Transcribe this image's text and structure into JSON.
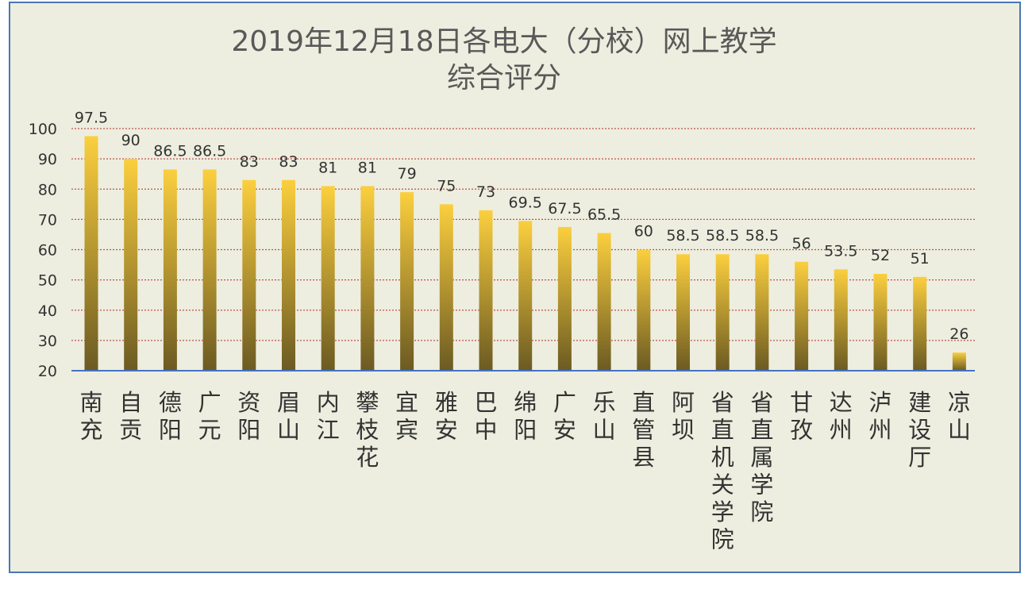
{
  "chart_data": {
    "type": "bar",
    "title": "2019年12月18日各电大（分校）网上教学",
    "subtitle": "综合评分",
    "xlabel": "",
    "ylabel": "",
    "ylim": [
      20,
      100
    ],
    "yticks": [
      20,
      30,
      40,
      50,
      60,
      70,
      80,
      90,
      100
    ],
    "grid": true,
    "legend": "none",
    "categories": [
      "南充",
      "自贡",
      "德阳",
      "广元",
      "资阳",
      "眉山",
      "内江",
      "攀枝花",
      "宜宾",
      "雅安",
      "巴中",
      "绵阳",
      "广安",
      "乐山",
      "直管县",
      "阿坝",
      "省直机关学院",
      "省直属学院",
      "甘孜",
      "达州",
      "泸州",
      "建设厅",
      "凉山"
    ],
    "values": [
      97.5,
      90,
      86.5,
      86.5,
      83,
      83,
      81,
      81,
      79,
      75,
      73,
      69.5,
      67.5,
      65.5,
      60,
      58.5,
      58.5,
      58.5,
      56,
      53.5,
      52,
      51,
      26
    ],
    "data_labels": [
      "97.5",
      "90",
      "86.5",
      "86.5",
      "83",
      "83",
      "81",
      "81",
      "79",
      "75",
      "73",
      "69.5",
      "67.5",
      "65.5",
      "60",
      "58.5",
      "58.5",
      "58.5",
      "56",
      "53.5",
      "52",
      "51",
      "26"
    ],
    "colors": {
      "bar_top": "#fbcf3e",
      "bar_bottom": "#6b5a22",
      "grid": "#c0504d",
      "axis": "#4472c4",
      "frame": "#4a76b7",
      "background": "#edeedf"
    }
  }
}
